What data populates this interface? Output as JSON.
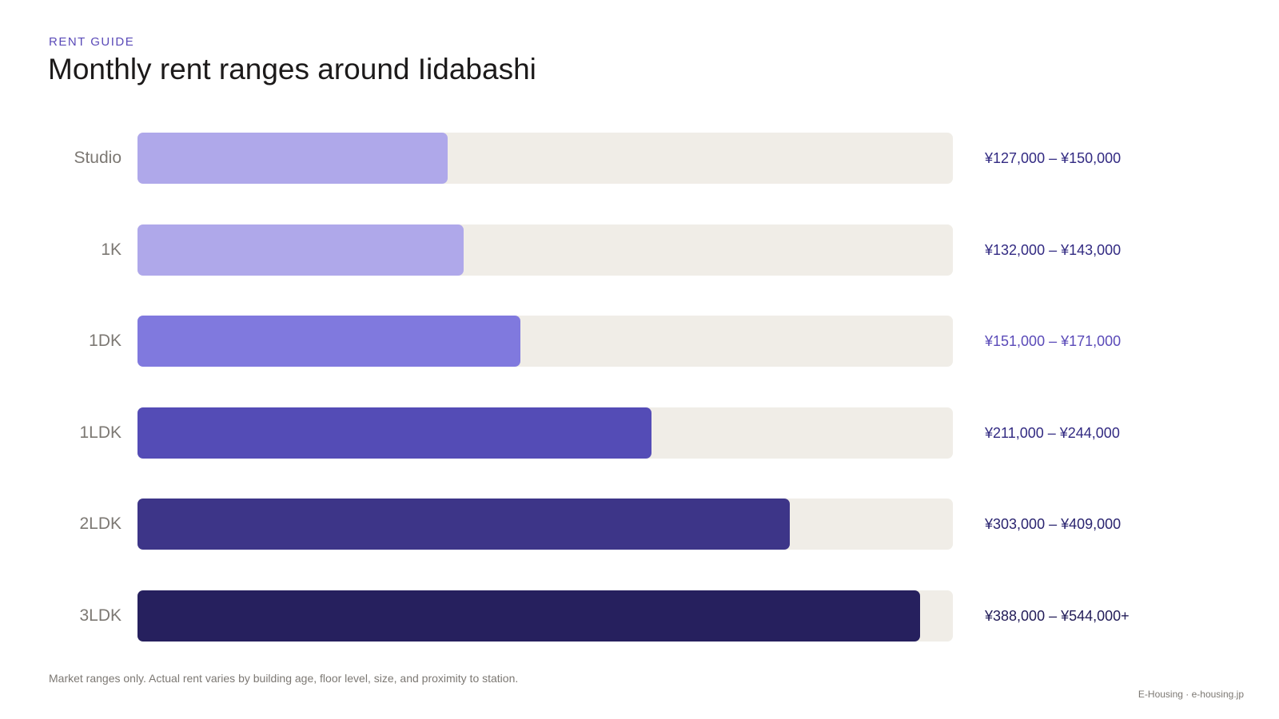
{
  "header": {
    "eyebrow": "RENT GUIDE",
    "title": "Monthly rent ranges around Iidabashi"
  },
  "chart_data": {
    "type": "bar",
    "orientation": "horizontal",
    "categories": [
      "Studio",
      "1K",
      "1DK",
      "1LDK",
      "2LDK",
      "3LDK"
    ],
    "ranges": [
      "¥127,000 – ¥150,000",
      "¥132,000 – ¥143,000",
      "¥151,000 – ¥171,000",
      "¥211,000 – ¥244,000",
      "¥303,000 – ¥409,000",
      "¥388,000 – ¥544,000+"
    ],
    "values": [
      0.38,
      0.4,
      0.47,
      0.63,
      0.8,
      0.96
    ],
    "value_unit": "fraction of track length",
    "colors": [
      "#afa8ea",
      "#afa8ea",
      "#8079de",
      "#544cb6",
      "#3d3588",
      "#26205e"
    ],
    "range_text_colors": [
      "#322a82",
      "#322a82",
      "#5a4ab8",
      "#322a82",
      "#2a2470",
      "#221c58"
    ],
    "track_color": "#f0ede7",
    "grid": false,
    "legend": "none"
  },
  "footer": {
    "note": "Market ranges only. Actual rent varies by building age, floor level, size, and proximity to station.",
    "credit": "E-Housing · e-housing.jp"
  }
}
